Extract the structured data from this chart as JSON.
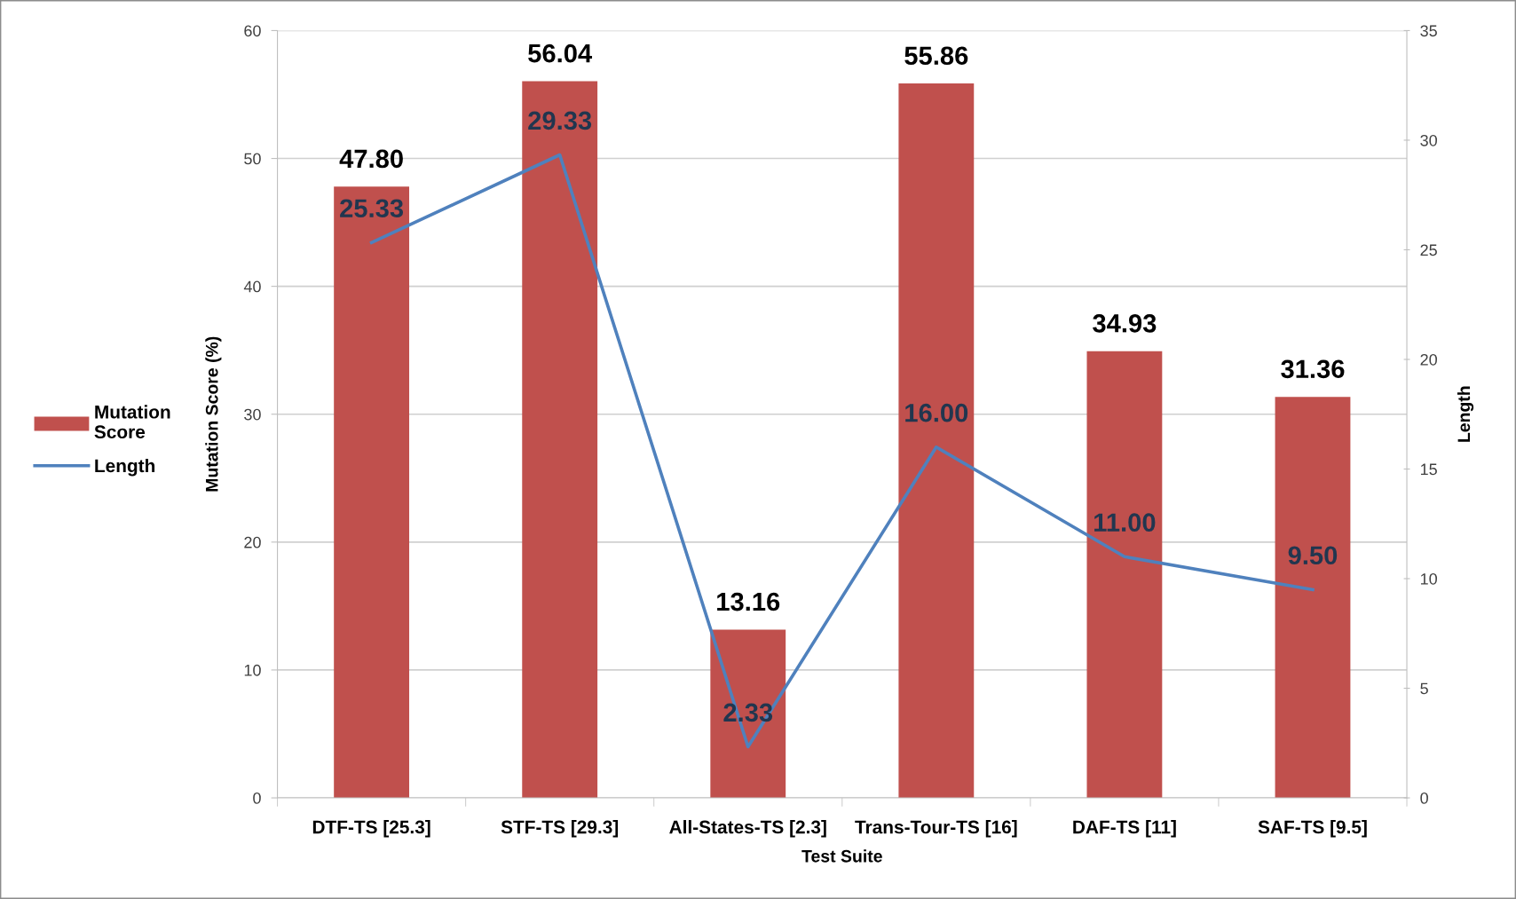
{
  "chart_data": {
    "type": "bar",
    "xlabel": "Test Suite",
    "ylabel": "Mutation Score (%)",
    "y2label": "Length",
    "categories": [
      "DTF-TS [25.3]",
      "STF-TS [29.3]",
      "All-States-TS [2.3]",
      "Trans-Tour-TS [16]",
      "DAF-TS [11]",
      "SAF-TS [9.5]"
    ],
    "series": [
      {
        "name": "Mutation Score",
        "color": "#c0504d",
        "values": [
          47.8,
          56.04,
          13.16,
          55.86,
          34.93,
          31.36
        ],
        "value_labels": [
          "47.80",
          "56.04",
          "13.16",
          "55.86",
          "34.93",
          "31.36"
        ]
      },
      {
        "name": "Length",
        "type": "line",
        "axis": "y2",
        "color": "#4f81bd",
        "values": [
          25.33,
          29.33,
          2.33,
          16.0,
          11.0,
          9.5
        ],
        "value_labels": [
          "25.33",
          "29.33",
          "2.33",
          "16.00",
          "11.00",
          "9.50"
        ]
      }
    ],
    "ylim": [
      0,
      60
    ],
    "yticks": [
      0,
      10,
      20,
      30,
      40,
      50,
      60
    ],
    "y2lim": [
      0,
      35
    ],
    "y2ticks": [
      0,
      5,
      10,
      15,
      20,
      25,
      30,
      35
    ],
    "grid": "y",
    "legend": "left"
  }
}
